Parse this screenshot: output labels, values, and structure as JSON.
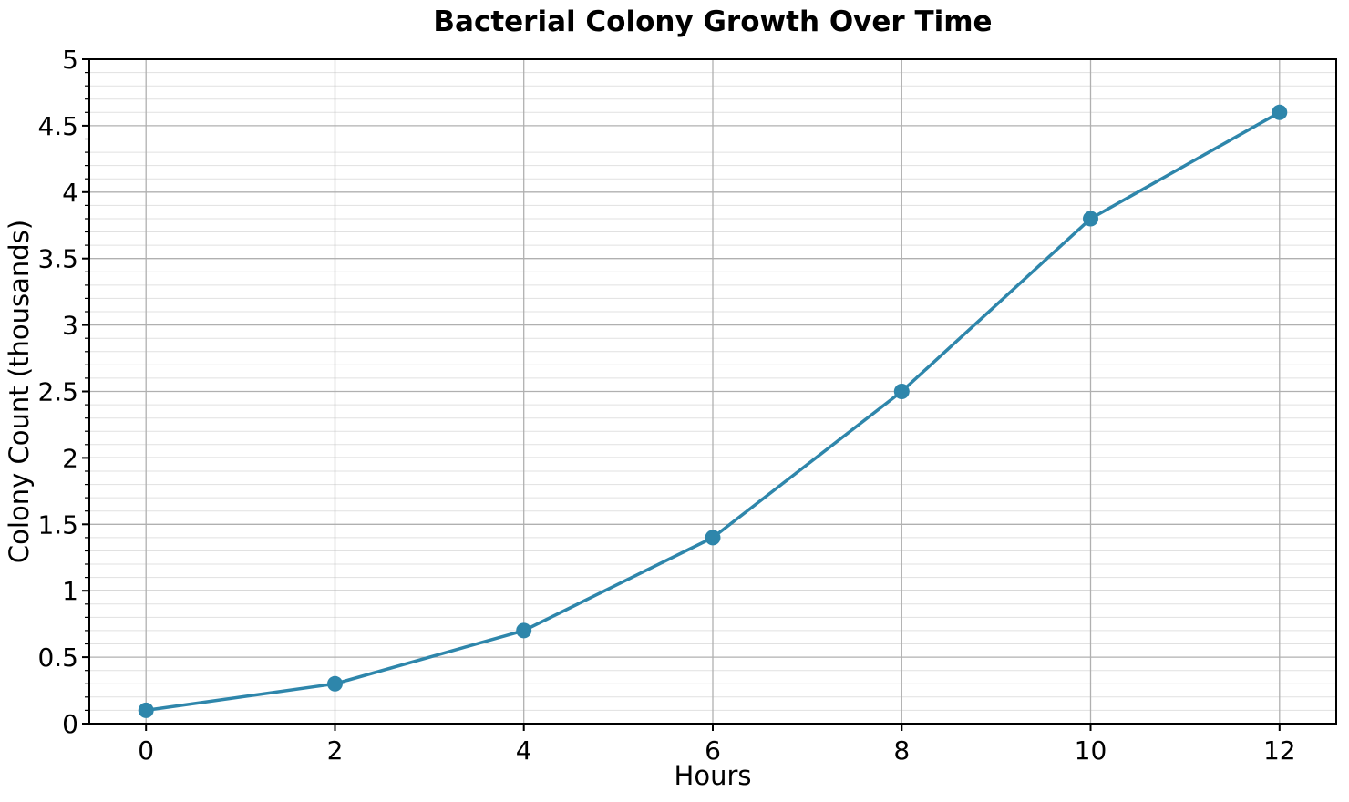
{
  "chart_data": {
    "type": "line",
    "title": "Bacterial Colony Growth Over Time",
    "xlabel": "Hours",
    "ylabel": "Colony Count (thousands)",
    "x": [
      0,
      2,
      4,
      6,
      8,
      10,
      12
    ],
    "values": [
      0.1,
      0.3,
      0.7,
      1.4,
      2.5,
      3.8,
      4.6
    ],
    "xlim": [
      -0.6,
      12.6
    ],
    "ylim": [
      0,
      5
    ],
    "x_ticks": [
      0,
      2,
      4,
      6,
      8,
      10,
      12
    ],
    "x_tick_labels": [
      "0",
      "2",
      "4",
      "6",
      "8",
      "10",
      "12"
    ],
    "y_ticks": [
      0,
      0.5,
      1,
      1.5,
      2,
      2.5,
      3,
      3.5,
      4,
      4.5,
      5
    ],
    "y_tick_labels": [
      "0",
      "0.5",
      "1",
      "1.5",
      "2",
      "2.5",
      "3",
      "3.5",
      "4",
      "4.5",
      "5"
    ],
    "y_minor_step": 0.1,
    "grid": {
      "major": "on",
      "minor_horizontal": "on",
      "minor_vertical": "off"
    },
    "legend": "none",
    "marker": "circle",
    "colors": {
      "line": "#2E86AB",
      "marker": "#2E86AB",
      "grid_major": "#b0b0b0",
      "grid_minor": "#e1e1e1",
      "spine": "#000000",
      "text": "#000000",
      "background": "#ffffff"
    }
  }
}
